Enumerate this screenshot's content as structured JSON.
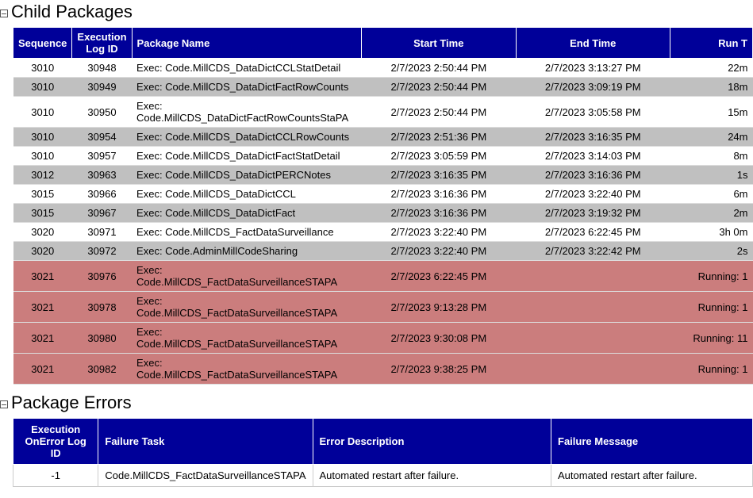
{
  "colors": {
    "header_bg": "#000099",
    "header_fg": "#ffffff",
    "row_white": "#ffffff",
    "row_gray": "#c0c0c0",
    "row_red": "#cb7d7d"
  },
  "child_packages": {
    "title": "Child Packages",
    "columns": {
      "sequence": "Sequence",
      "execution_log_id": "Execution Log ID",
      "package_name": "Package Name",
      "start_time": "Start Time",
      "end_time": "End Time",
      "run_time": "Run T"
    },
    "rows": [
      {
        "seq": "3010",
        "log": "30948",
        "pkg": "Exec: Code.MillCDS_DataDictCCLStatDetail",
        "start": "2/7/2023 2:50:44 PM",
        "end": "2/7/2023 3:13:27 PM",
        "run": "22m",
        "row_class": "row-white"
      },
      {
        "seq": "3010",
        "log": "30949",
        "pkg": "Exec: Code.MillCDS_DataDictFactRowCounts",
        "start": "2/7/2023 2:50:44 PM",
        "end": "2/7/2023 3:09:19 PM",
        "run": "18m",
        "row_class": "row-gray"
      },
      {
        "seq": "3010",
        "log": "30950",
        "pkg": "Exec: Code.MillCDS_DataDictFactRowCountsStaPA",
        "start": "2/7/2023 2:50:44 PM",
        "end": "2/7/2023 3:05:58 PM",
        "run": "15m",
        "row_class": "row-white"
      },
      {
        "seq": "3010",
        "log": "30954",
        "pkg": "Exec: Code.MillCDS_DataDictCCLRowCounts",
        "start": "2/7/2023 2:51:36 PM",
        "end": "2/7/2023 3:16:35 PM",
        "run": "24m",
        "row_class": "row-gray"
      },
      {
        "seq": "3010",
        "log": "30957",
        "pkg": "Exec: Code.MillCDS_DataDictFactStatDetail",
        "start": "2/7/2023 3:05:59 PM",
        "end": "2/7/2023 3:14:03 PM",
        "run": "8m",
        "row_class": "row-white"
      },
      {
        "seq": "3012",
        "log": "30963",
        "pkg": "Exec: Code.MillCDS_DataDictPERCNotes",
        "start": "2/7/2023 3:16:35 PM",
        "end": "2/7/2023 3:16:36 PM",
        "run": "1s",
        "row_class": "row-gray"
      },
      {
        "seq": "3015",
        "log": "30966",
        "pkg": "Exec: Code.MillCDS_DataDictCCL",
        "start": "2/7/2023 3:16:36 PM",
        "end": "2/7/2023 3:22:40 PM",
        "run": "6m",
        "row_class": "row-white"
      },
      {
        "seq": "3015",
        "log": "30967",
        "pkg": "Exec: Code.MillCDS_DataDictFact",
        "start": "2/7/2023 3:16:36 PM",
        "end": "2/7/2023 3:19:32 PM",
        "run": "2m",
        "row_class": "row-gray"
      },
      {
        "seq": "3020",
        "log": "30971",
        "pkg": "Exec: Code.MillCDS_FactDataSurveillance",
        "start": "2/7/2023 3:22:40 PM",
        "end": "2/7/2023 6:22:45 PM",
        "run": "3h 0m",
        "row_class": "row-white"
      },
      {
        "seq": "3020",
        "log": "30972",
        "pkg": "Exec: Code.AdminMillCodeSharing",
        "start": "2/7/2023 3:22:40 PM",
        "end": "2/7/2023 3:22:42 PM",
        "run": "2s",
        "row_class": "row-gray"
      },
      {
        "seq": "3021",
        "log": "30976",
        "pkg": "Exec: Code.MillCDS_FactDataSurveillanceSTAPA",
        "start": "2/7/2023 6:22:45 PM",
        "end": "",
        "run": "Running: 1",
        "row_class": "row-red"
      },
      {
        "seq": "3021",
        "log": "30978",
        "pkg": "Exec: Code.MillCDS_FactDataSurveillanceSTAPA",
        "start": "2/7/2023 9:13:28 PM",
        "end": "",
        "run": "Running: 1",
        "row_class": "row-red"
      },
      {
        "seq": "3021",
        "log": "30980",
        "pkg": "Exec: Code.MillCDS_FactDataSurveillanceSTAPA",
        "start": "2/7/2023 9:30:08 PM",
        "end": "",
        "run": "Running: 11",
        "row_class": "row-red"
      },
      {
        "seq": "3021",
        "log": "30982",
        "pkg": "Exec: Code.MillCDS_FactDataSurveillanceSTAPA",
        "start": "2/7/2023 9:38:25 PM",
        "end": "",
        "run": "Running: 1",
        "row_class": "row-red"
      }
    ]
  },
  "package_errors": {
    "title": "Package Errors",
    "columns": {
      "onerror_log_id": "Execution OnError Log ID",
      "failure_task": "Failure Task",
      "error_description": "Error Description",
      "failure_message": "Failure Message"
    },
    "rows": [
      {
        "id": "-1",
        "task": "Code.MillCDS_FactDataSurveillanceSTAPA",
        "desc": "Automated restart after failure.",
        "msg": "Automated restart after failure."
      }
    ]
  }
}
